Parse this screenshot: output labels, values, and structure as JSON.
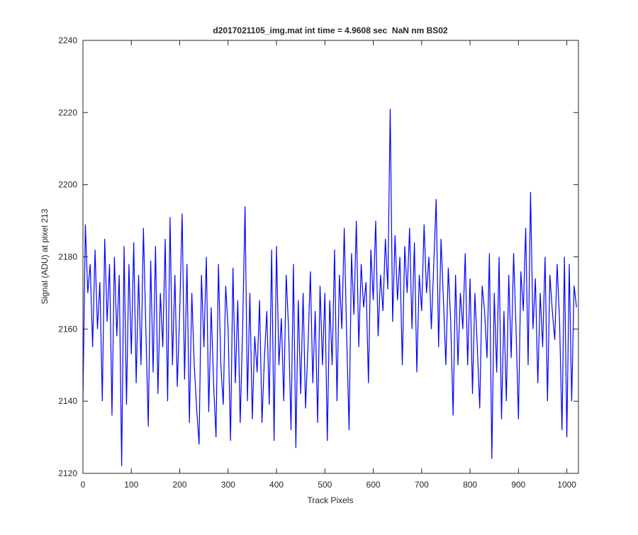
{
  "chart_data": {
    "type": "line",
    "title": "d2017021105_img.mat int time = 4.9608 sec  NaN nm BS02",
    "xlabel": "Track Pixels",
    "ylabel": "Signal (ADU) at pixel 213",
    "color": "#0000ff",
    "xlim": [
      0,
      1024
    ],
    "ylim": [
      2120,
      2240
    ],
    "xticks": [
      0,
      100,
      200,
      300,
      400,
      500,
      600,
      700,
      800,
      900,
      1000
    ],
    "yticks": [
      2120,
      2140,
      2160,
      2180,
      2200,
      2220,
      2240
    ],
    "x": [
      0,
      5,
      10,
      15,
      20,
      25,
      30,
      35,
      40,
      45,
      50,
      55,
      60,
      65,
      70,
      75,
      80,
      85,
      90,
      95,
      100,
      105,
      110,
      115,
      120,
      125,
      130,
      135,
      140,
      145,
      150,
      155,
      160,
      165,
      170,
      175,
      180,
      185,
      190,
      195,
      200,
      205,
      210,
      215,
      220,
      225,
      230,
      235,
      240,
      245,
      250,
      255,
      260,
      265,
      270,
      275,
      280,
      285,
      290,
      295,
      300,
      305,
      310,
      315,
      320,
      325,
      330,
      335,
      340,
      345,
      350,
      355,
      360,
      365,
      370,
      375,
      380,
      385,
      390,
      395,
      400,
      405,
      410,
      415,
      420,
      425,
      430,
      435,
      440,
      445,
      450,
      455,
      460,
      465,
      470,
      475,
      480,
      485,
      490,
      495,
      500,
      505,
      510,
      515,
      520,
      525,
      530,
      535,
      540,
      545,
      550,
      555,
      560,
      565,
      570,
      575,
      580,
      585,
      590,
      595,
      600,
      605,
      610,
      615,
      620,
      625,
      630,
      635,
      640,
      645,
      650,
      655,
      660,
      665,
      670,
      675,
      680,
      685,
      690,
      695,
      700,
      705,
      710,
      715,
      720,
      725,
      730,
      735,
      740,
      745,
      750,
      755,
      760,
      765,
      770,
      775,
      780,
      785,
      790,
      795,
      800,
      805,
      810,
      815,
      820,
      825,
      830,
      835,
      840,
      845,
      850,
      855,
      860,
      865,
      870,
      875,
      880,
      885,
      890,
      895,
      900,
      905,
      910,
      915,
      920,
      925,
      930,
      935,
      940,
      945,
      950,
      955,
      960,
      965,
      970,
      975,
      980,
      985,
      990,
      995,
      1000,
      1005,
      1010,
      1015,
      1020
    ],
    "values": [
      2140,
      2189,
      2170,
      2178,
      2155,
      2182,
      2160,
      2173,
      2140,
      2185,
      2162,
      2178,
      2136,
      2180,
      2158,
      2175,
      2122,
      2183,
      2139,
      2178,
      2153,
      2184,
      2145,
      2175,
      2150,
      2188,
      2160,
      2133,
      2179,
      2148,
      2183,
      2142,
      2170,
      2155,
      2185,
      2140,
      2191,
      2150,
      2175,
      2144,
      2165,
      2192,
      2146,
      2178,
      2134,
      2170,
      2150,
      2138,
      2128,
      2175,
      2155,
      2180,
      2137,
      2166,
      2145,
      2130,
      2178,
      2150,
      2139,
      2172,
      2160,
      2129,
      2177,
      2145,
      2168,
      2134,
      2160,
      2194,
      2140,
      2170,
      2135,
      2158,
      2148,
      2168,
      2134,
      2152,
      2165,
      2139,
      2182,
      2129,
      2183,
      2150,
      2163,
      2140,
      2175,
      2160,
      2132,
      2178,
      2127,
      2168,
      2142,
      2170,
      2138,
      2155,
      2176,
      2145,
      2165,
      2134,
      2172,
      2150,
      2170,
      2129,
      2168,
      2150,
      2182,
      2140,
      2175,
      2160,
      2188,
      2158,
      2132,
      2181,
      2164,
      2190,
      2155,
      2178,
      2166,
      2173,
      2145,
      2182,
      2168,
      2190,
      2158,
      2175,
      2165,
      2185,
      2171,
      2221,
      2162,
      2186,
      2168,
      2180,
      2150,
      2183,
      2170,
      2188,
      2160,
      2184,
      2148,
      2175,
      2165,
      2189,
      2170,
      2180,
      2160,
      2178,
      2196,
      2155,
      2185,
      2168,
      2150,
      2177,
      2162,
      2136,
      2175,
      2150,
      2170,
      2160,
      2181,
      2150,
      2174,
      2142,
      2170,
      2155,
      2138,
      2172,
      2165,
      2152,
      2181,
      2124,
      2170,
      2148,
      2180,
      2135,
      2165,
      2140,
      2175,
      2152,
      2181,
      2160,
      2135,
      2176,
      2165,
      2188,
      2150,
      2198,
      2160,
      2174,
      2145,
      2170,
      2155,
      2180,
      2140,
      2175,
      2165,
      2157,
      2178,
      2162,
      2132,
      2180,
      2130,
      2178,
      2140,
      2172,
      2166
    ]
  }
}
